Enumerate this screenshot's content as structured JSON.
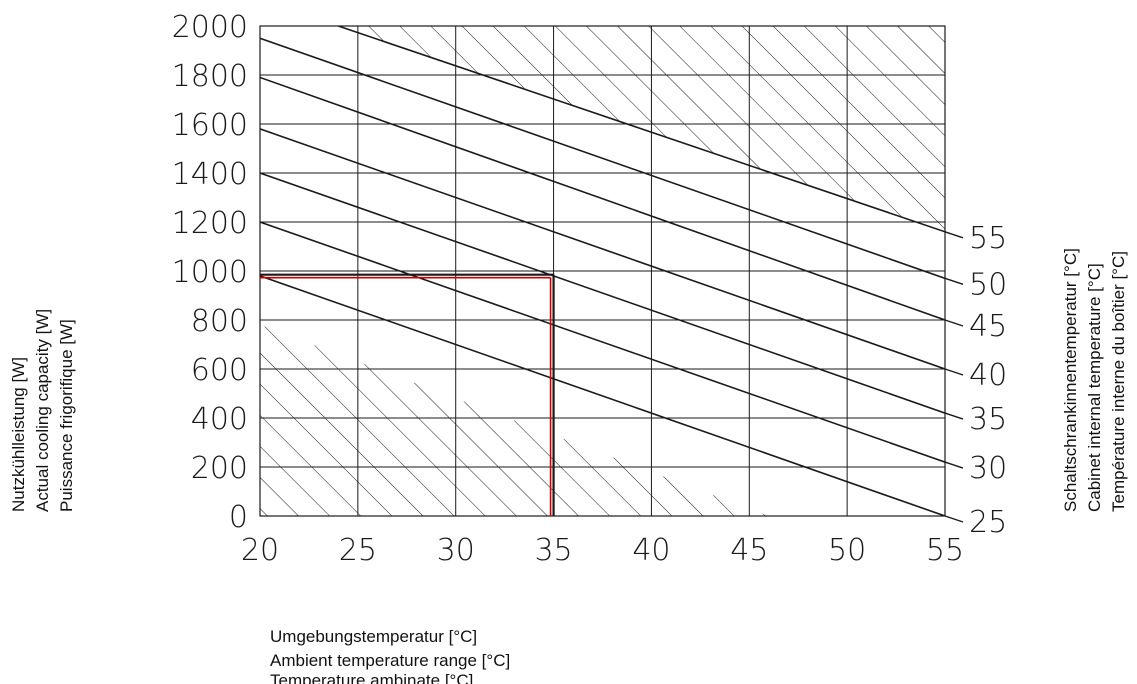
{
  "chart_data": {
    "type": "line",
    "xlabel": [
      "Umgebungstemperatur [°C]",
      "Ambient temperature range [°C]",
      "Temperature ambinate [°C]"
    ],
    "ylabel": [
      "Nutzkühlleistung [W]",
      "Actual cooling capacity [W]",
      "Puissance frigorifique [W]"
    ],
    "y2label": [
      "Schaltschrankinnentemperatur [°C]",
      "Cabinet internal temperature [°C]",
      "Température interne du boîtier [°C]"
    ],
    "xlim": [
      20,
      55
    ],
    "ylim": [
      0,
      2000
    ],
    "x_ticks": [
      "20",
      "25",
      "30",
      "35",
      "40",
      "45",
      "50",
      "55"
    ],
    "y_ticks": [
      "0",
      "200",
      "400",
      "600",
      "800",
      "1000",
      "1200",
      "1400",
      "1600",
      "1800",
      "2000"
    ],
    "grid": true,
    "series": [
      {
        "name": "25",
        "x": [
          20,
          55
        ],
        "y": [
          980,
          0
        ]
      },
      {
        "name": "30",
        "x": [
          20,
          55
        ],
        "y": [
          1200,
          220
        ]
      },
      {
        "name": "35",
        "x": [
          20,
          55
        ],
        "y": [
          1400,
          420
        ]
      },
      {
        "name": "40",
        "x": [
          20,
          55
        ],
        "y": [
          1580,
          600
        ]
      },
      {
        "name": "45",
        "x": [
          20,
          55
        ],
        "y": [
          1790,
          800
        ]
      },
      {
        "name": "50",
        "x": [
          20,
          55
        ],
        "y": [
          1950,
          970
        ]
      },
      {
        "name": "55",
        "x": [
          24,
          55
        ],
        "y": [
          2000,
          1160
        ]
      }
    ],
    "hatched_regions": [
      {
        "position": "upper",
        "x": [
          24,
          55,
          55
        ],
        "y": [
          2000,
          2000,
          1160
        ]
      },
      {
        "position": "lower",
        "x": [
          20,
          20,
          46
        ],
        "y": [
          780,
          0,
          0
        ]
      }
    ],
    "reading_example": {
      "x": 35,
      "y": 985
    },
    "colors": {
      "lines": "#1a1a1a",
      "highlight": "#cc0000"
    }
  }
}
